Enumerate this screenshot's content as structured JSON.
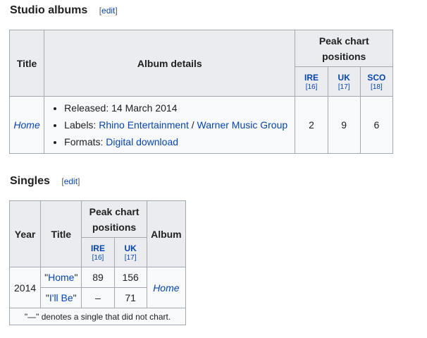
{
  "albums_section": {
    "heading": "Studio albums",
    "edit_label": "edit"
  },
  "albums_table": {
    "col_title": "Title",
    "col_details": "Album details",
    "col_peak": "Peak chart positions",
    "charts": [
      {
        "name": "IRE",
        "ref": "[16]"
      },
      {
        "name": "UK",
        "ref": "[17]"
      },
      {
        "name": "SCO",
        "ref": "[18]"
      }
    ],
    "rows": [
      {
        "title": "Home",
        "released_label": "Released: 14 March 2014",
        "labels_prefix": "Labels: ",
        "label1": "Rhino Entertainment",
        "label_sep": " / ",
        "label2": "Warner Music Group",
        "formats_prefix": "Formats: ",
        "format1": "Digital download",
        "peaks": [
          "2",
          "9",
          "6"
        ]
      }
    ]
  },
  "singles_section": {
    "heading": "Singles",
    "edit_label": "edit"
  },
  "singles_table": {
    "col_year": "Year",
    "col_title": "Title",
    "col_peak": "Peak chart positions",
    "col_album": "Album",
    "charts": [
      {
        "name": "IRE",
        "ref": "[16]"
      },
      {
        "name": "UK",
        "ref": "[17]"
      }
    ],
    "year": "2014",
    "album": "Home",
    "rows": [
      {
        "quote_open": "\"",
        "title": "Home",
        "quote_close": "\"",
        "peaks": [
          "89",
          "156"
        ]
      },
      {
        "quote_open": "\"",
        "title": "I'll Be",
        "quote_close": "\"",
        "peaks": [
          "–",
          "71"
        ]
      }
    ],
    "footnote": "\"—\" denotes a single that did not chart."
  }
}
